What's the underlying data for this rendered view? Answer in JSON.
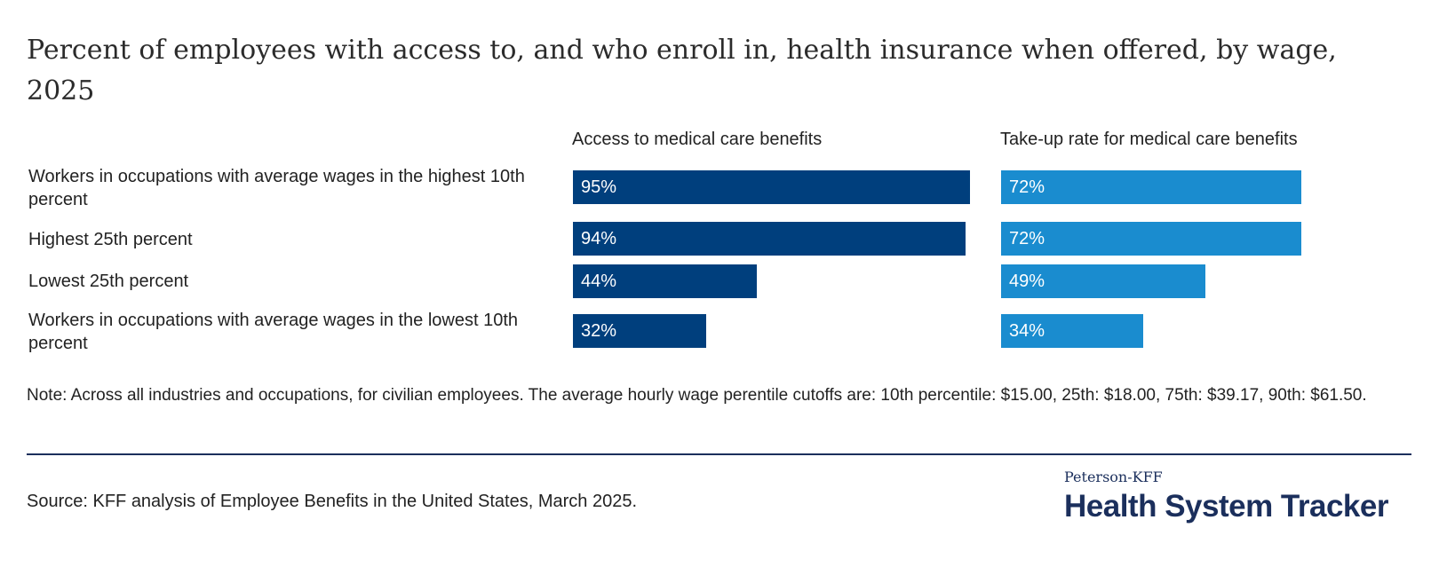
{
  "chart_data": {
    "type": "bar",
    "orientation": "horizontal",
    "title": "Percent of employees with access to, and who enroll in, health insurance when offered, by wage,  2025",
    "categories": [
      "Workers in occupations with average wages in the highest 10th percent",
      "Highest 25th percent",
      "Lowest 25th percent",
      "Workers in occupations with average wages in the lowest 10th percent"
    ],
    "series": [
      {
        "name": "Access to medical care benefits",
        "values": [
          95,
          94,
          44,
          32
        ],
        "labels": [
          "95%",
          "94%",
          "44%",
          "32%"
        ],
        "color": "#003f7d"
      },
      {
        "name": "Take-up rate for medical care benefits",
        "values": [
          72,
          72,
          49,
          34
        ],
        "labels": [
          "72%",
          "72%",
          "49%",
          "34%"
        ],
        "color": "#1a8ccf"
      }
    ],
    "xlim": [
      0,
      100
    ],
    "unit": "%",
    "grid": false
  },
  "note": "Note: Across all industries and occupations, for civilian employees. The average hourly wage perentile cutoffs are: 10th percentile: $15.00, 25th: $18.00, 75th: $39.17, 90th: $61.50.",
  "source": "Source: KFF analysis of Employee Benefits in the United States, March 2025.",
  "logo": {
    "top": "Peterson-KFF",
    "main": "Health System Tracker",
    "color": "#1b2f5c"
  }
}
